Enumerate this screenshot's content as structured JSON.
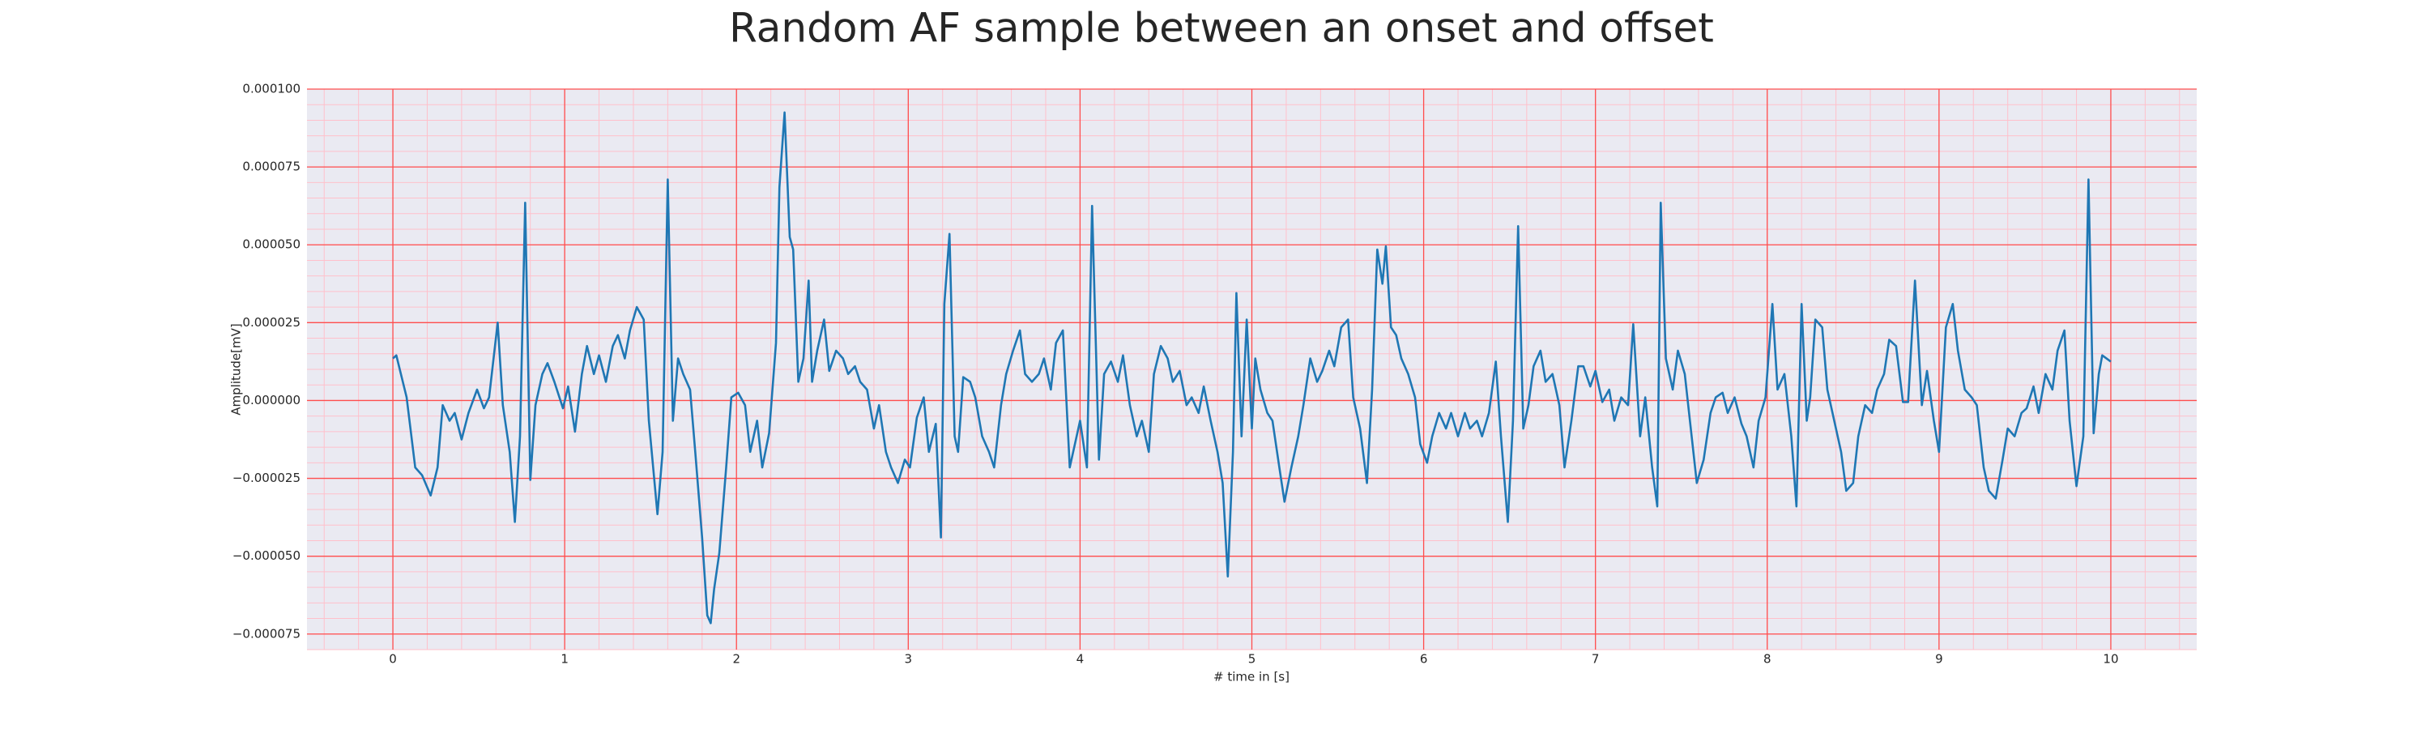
{
  "chart_data": {
    "type": "line",
    "title": "Random AF sample between an onset and offset",
    "x_label": "# time in [s]",
    "y_label": "Amplitude[mV]",
    "grid": true,
    "color": "#1f77b4",
    "xlim": [
      -0.5,
      10.5
    ],
    "ylim": [
      -8e-05,
      0.0001
    ],
    "xticks": [
      0,
      1,
      2,
      3,
      4,
      5,
      6,
      7,
      8,
      9,
      10
    ],
    "yticks": [
      {
        "value": -7.5e-05,
        "label": "−0.000075"
      },
      {
        "value": -5e-05,
        "label": "−0.000050"
      },
      {
        "value": -2.5e-05,
        "label": "−0.000025"
      },
      {
        "value": 0,
        "label": "0.000000"
      },
      {
        "value": 2.5e-05,
        "label": "0.000025"
      },
      {
        "value": 5e-05,
        "label": "0.000050"
      },
      {
        "value": 7.5e-05,
        "label": "0.000075"
      },
      {
        "value": 0.0001,
        "label": "0.000100"
      }
    ],
    "x": [
      0.0,
      0.02,
      0.08,
      0.13,
      0.17,
      0.22,
      0.26,
      0.29,
      0.33,
      0.36,
      0.4,
      0.44,
      0.49,
      0.53,
      0.56,
      0.61,
      0.64,
      0.68,
      0.71,
      0.74,
      0.77,
      0.8,
      0.83,
      0.87,
      0.9,
      0.94,
      0.99,
      1.02,
      1.06,
      1.1,
      1.13,
      1.17,
      1.2,
      1.24,
      1.28,
      1.31,
      1.35,
      1.38,
      1.42,
      1.46,
      1.49,
      1.54,
      1.57,
      1.6,
      1.63,
      1.66,
      1.69,
      1.73,
      1.76,
      1.8,
      1.83,
      1.85,
      1.87,
      1.9,
      1.94,
      1.97,
      2.01,
      2.05,
      2.08,
      2.12,
      2.15,
      2.19,
      2.23,
      2.25,
      2.28,
      2.31,
      2.33,
      2.36,
      2.39,
      2.42,
      2.44,
      2.47,
      2.51,
      2.54,
      2.58,
      2.62,
      2.65,
      2.69,
      2.72,
      2.76,
      2.8,
      2.83,
      2.87,
      2.9,
      2.94,
      2.98,
      3.01,
      3.05,
      3.09,
      3.12,
      3.16,
      3.19,
      3.21,
      3.24,
      3.27,
      3.29,
      3.32,
      3.36,
      3.39,
      3.43,
      3.47,
      3.5,
      3.54,
      3.57,
      3.61,
      3.65,
      3.68,
      3.72,
      3.76,
      3.79,
      3.83,
      3.86,
      3.9,
      3.94,
      3.97,
      4.0,
      4.04,
      4.07,
      4.11,
      4.14,
      4.18,
      4.22,
      4.25,
      4.29,
      4.33,
      4.36,
      4.4,
      4.43,
      4.47,
      4.51,
      4.54,
      4.58,
      4.62,
      4.65,
      4.69,
      4.72,
      4.76,
      4.8,
      4.83,
      4.86,
      4.89,
      4.91,
      4.94,
      4.97,
      5.0,
      5.02,
      5.05,
      5.09,
      5.12,
      5.16,
      5.19,
      5.23,
      5.27,
      5.3,
      5.34,
      5.38,
      5.41,
      5.45,
      5.48,
      5.52,
      5.56,
      5.59,
      5.63,
      5.67,
      5.7,
      5.73,
      5.76,
      5.78,
      5.81,
      5.84,
      5.87,
      5.91,
      5.95,
      5.98,
      6.02,
      6.05,
      6.09,
      6.13,
      6.16,
      6.2,
      6.24,
      6.27,
      6.31,
      6.34,
      6.38,
      6.42,
      6.45,
      6.49,
      6.52,
      6.55,
      6.58,
      6.61,
      6.64,
      6.68,
      6.71,
      6.75,
      6.79,
      6.82,
      6.86,
      6.9,
      6.93,
      6.97,
      7.0,
      7.04,
      7.08,
      7.11,
      7.15,
      7.19,
      7.22,
      7.26,
      7.29,
      7.33,
      7.36,
      7.38,
      7.41,
      7.45,
      7.48,
      7.52,
      7.56,
      7.59,
      7.63,
      7.67,
      7.7,
      7.74,
      7.77,
      7.81,
      7.85,
      7.88,
      7.92,
      7.95,
      7.99,
      8.03,
      8.06,
      8.1,
      8.14,
      8.17,
      8.2,
      8.23,
      8.25,
      8.28,
      8.32,
      8.35,
      8.39,
      8.43,
      8.46,
      8.5,
      8.53,
      8.57,
      8.61,
      8.64,
      8.68,
      8.71,
      8.75,
      8.79,
      8.82,
      8.86,
      8.9,
      8.93,
      8.97,
      9.0,
      9.04,
      9.08,
      9.11,
      9.15,
      9.19,
      9.22,
      9.26,
      9.29,
      9.33,
      9.37,
      9.4,
      9.44,
      9.48,
      9.51,
      9.55,
      9.58,
      9.62,
      9.66,
      9.69,
      9.73,
      9.76,
      9.8,
      9.84,
      9.87,
      9.9,
      9.93,
      9.95,
      10.0
    ],
    "values": [
      1.35e-05,
      1.45e-05,
      1e-06,
      -2.15e-05,
      -2.4e-05,
      -3.05e-05,
      -2.15e-05,
      -1.5e-06,
      -6.5e-06,
      -4e-06,
      -1.25e-05,
      -4e-06,
      3.5e-06,
      -2.5e-06,
      1e-06,
      2.5e-05,
      -1.5e-06,
      -1.65e-05,
      -3.9e-05,
      -1.15e-05,
      6.35e-05,
      -2.55e-05,
      -1.5e-06,
      8.5e-06,
      1.2e-05,
      6e-06,
      -2.5e-06,
      4.5e-06,
      -1e-05,
      8.5e-06,
      1.75e-05,
      8.5e-06,
      1.45e-05,
      6e-06,
      1.75e-05,
      2.1e-05,
      1.35e-05,
      2.25e-05,
      3e-05,
      2.6e-05,
      -6.5e-06,
      -3.65e-05,
      -1.65e-05,
      7.1e-05,
      -6.5e-06,
      1.35e-05,
      8.5e-06,
      3.5e-06,
      -1.65e-05,
      -4.4e-05,
      -6.9e-05,
      -7.15e-05,
      -6.05e-05,
      -4.9e-05,
      -2.15e-05,
      1e-06,
      2.5e-06,
      -1.5e-06,
      -1.65e-05,
      -6.5e-06,
      -2.15e-05,
      -1.05e-05,
      1.85e-05,
      6.85e-05,
      9.25e-05,
      5.25e-05,
      4.85e-05,
      6e-06,
      1.35e-05,
      3.85e-05,
      6e-06,
      1.6e-05,
      2.6e-05,
      9.5e-06,
      1.6e-05,
      1.35e-05,
      8.5e-06,
      1.1e-05,
      6e-06,
      3.5e-06,
      -9e-06,
      -1.5e-06,
      -1.65e-05,
      -2.15e-05,
      -2.65e-05,
      -1.9e-05,
      -2.15e-05,
      -5.5e-06,
      1e-06,
      -1.65e-05,
      -7.5e-06,
      -4.4e-05,
      3.1e-05,
      5.35e-05,
      -1.15e-05,
      -1.65e-05,
      7.5e-06,
      6e-06,
      1e-06,
      -1.15e-05,
      -1.65e-05,
      -2.15e-05,
      -1.5e-06,
      8.5e-06,
      1.6e-05,
      2.25e-05,
      8.5e-06,
      6e-06,
      8.5e-06,
      1.35e-05,
      3.5e-06,
      1.85e-05,
      2.25e-05,
      -2.15e-05,
      -1.4e-05,
      -6.5e-06,
      -2.15e-05,
      6.25e-05,
      -1.9e-05,
      8.5e-06,
      1.25e-05,
      6e-06,
      1.45e-05,
      -1.5e-06,
      -1.15e-05,
      -6.5e-06,
      -1.65e-05,
      8.5e-06,
      1.75e-05,
      1.35e-05,
      6e-06,
      9.5e-06,
      -1.5e-06,
      1e-06,
      -4e-06,
      4.5e-06,
      -6.5e-06,
      -1.65e-05,
      -2.65e-05,
      -5.65e-05,
      -1.65e-05,
      3.45e-05,
      -1.15e-05,
      2.6e-05,
      -9e-06,
      1.35e-05,
      3.5e-06,
      -4e-06,
      -6.5e-06,
      -2.15e-05,
      -3.25e-05,
      -2.15e-05,
      -1.15e-05,
      -1.5e-06,
      1.35e-05,
      6e-06,
      9.5e-06,
      1.6e-05,
      1.1e-05,
      2.35e-05,
      2.6e-05,
      1e-06,
      -9e-06,
      -2.65e-05,
      3.5e-06,
      4.85e-05,
      3.75e-05,
      4.95e-05,
      2.35e-05,
      2.1e-05,
      1.35e-05,
      8.5e-06,
      1e-06,
      -1.4e-05,
      -2e-05,
      -1.15e-05,
      -4e-06,
      -9e-06,
      -4e-06,
      -1.15e-05,
      -4e-06,
      -9e-06,
      -6.5e-06,
      -1.15e-05,
      -4e-06,
      1.25e-05,
      -1.15e-05,
      -3.9e-05,
      -6.5e-06,
      5.6e-05,
      -9e-06,
      -1.5e-06,
      1.1e-05,
      1.6e-05,
      6e-06,
      8.5e-06,
      -1.5e-06,
      -2.15e-05,
      -6.5e-06,
      1.1e-05,
      1.1e-05,
      4.5e-06,
      9.5e-06,
      -5e-07,
      3.5e-06,
      -6.5e-06,
      1e-06,
      -1.5e-06,
      2.45e-05,
      -1.15e-05,
      1e-06,
      -2.15e-05,
      -3.4e-05,
      6.35e-05,
      1.35e-05,
      3.5e-06,
      1.6e-05,
      8.5e-06,
      -1.15e-05,
      -2.65e-05,
      -1.9e-05,
      -4e-06,
      1e-06,
      2.5e-06,
      -4e-06,
      1e-06,
      -7.5e-06,
      -1.15e-05,
      -2.15e-05,
      -6.5e-06,
      1e-06,
      3.1e-05,
      3.5e-06,
      8.5e-06,
      -1.15e-05,
      -3.4e-05,
      3.1e-05,
      -6.5e-06,
      1e-06,
      2.6e-05,
      2.35e-05,
      3.5e-06,
      -6.5e-06,
      -1.65e-05,
      -2.9e-05,
      -2.65e-05,
      -1.15e-05,
      -1.5e-06,
      -4e-06,
      3.5e-06,
      8.5e-06,
      1.95e-05,
      1.75e-05,
      -5e-07,
      -5e-07,
      3.85e-05,
      -1.5e-06,
      9.5e-06,
      -6.5e-06,
      -1.65e-05,
      2.35e-05,
      3.1e-05,
      1.6e-05,
      3.5e-06,
      1e-06,
      -1.5e-06,
      -2.15e-05,
      -2.9e-05,
      -3.15e-05,
      -1.9e-05,
      -9e-06,
      -1.15e-05,
      -4e-06,
      -2.5e-06,
      4.5e-06,
      -4e-06,
      8.5e-06,
      3.5e-06,
      1.6e-05,
      2.25e-05,
      -6.5e-06,
      -2.75e-05,
      -1.15e-05,
      7.1e-05,
      -1.05e-05,
      8.5e-06,
      1.45e-05,
      1.25e-05
    ]
  }
}
